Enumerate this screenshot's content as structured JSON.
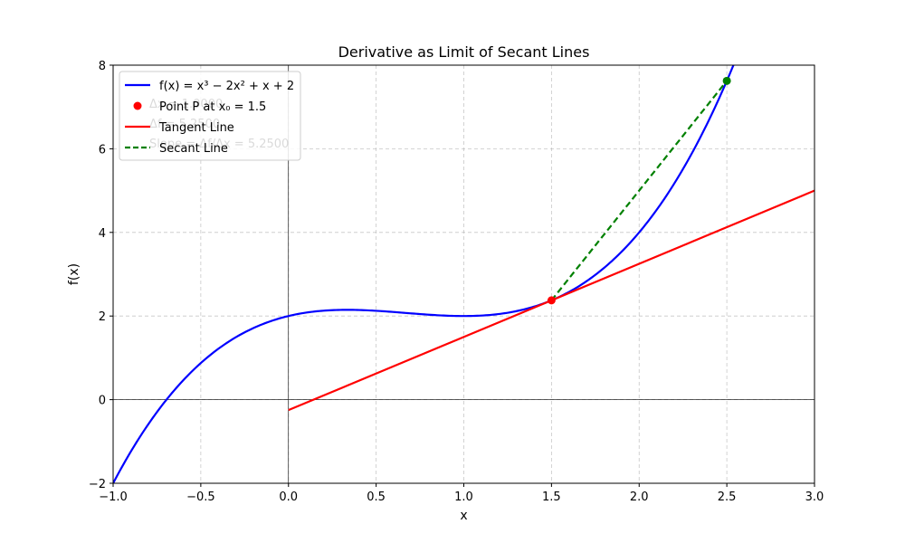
{
  "chart_data": {
    "type": "line",
    "title": "Derivative as Limit of Secant Lines",
    "xlabel": "x",
    "ylabel": "f(x)",
    "xlim": [
      -1.0,
      3.0
    ],
    "ylim": [
      -2,
      8
    ],
    "x_ticks": [
      -1.0,
      -0.5,
      0.0,
      0.5,
      1.0,
      1.5,
      2.0,
      2.5,
      3.0
    ],
    "x_tick_labels": [
      "−1.0",
      "−0.5",
      "0.0",
      "0.5",
      "1.0",
      "1.5",
      "2.0",
      "2.5",
      "3.0"
    ],
    "y_ticks": [
      -2,
      0,
      2,
      4,
      6,
      8
    ],
    "y_tick_labels": [
      "−2",
      "0",
      "2",
      "4",
      "6",
      "8"
    ],
    "grid": true,
    "legend_position": "top-left",
    "function": {
      "name": "f(x) = x³ − 2x² + x + 2",
      "coefficients": [
        1,
        -2,
        1,
        2
      ],
      "x_range": [
        -1.0,
        2.6
      ],
      "color": "#0000ff"
    },
    "point_p": {
      "name": "Point P at x₀ = 1.5",
      "x": 1.5,
      "y": 2.375,
      "color": "#ff0000"
    },
    "tangent": {
      "name": "Tangent Line",
      "x_range": [
        0.0,
        3.0
      ],
      "slope": 1.75,
      "intercept": -0.25,
      "color": "#ff0000"
    },
    "secant": {
      "name": "Secant Line",
      "x": [
        1.5,
        2.5
      ],
      "y": [
        2.375,
        7.625
      ],
      "color": "#008000"
    },
    "annotations": [
      "Δx = 1.0000",
      "Δf = 5.2500",
      "Slope = Δf/Δx = 5.2500"
    ]
  },
  "legend": {
    "items": [
      {
        "label": "f(x) = x³ − 2x² + x + 2",
        "kind": "line",
        "color": "#0000ff"
      },
      {
        "label": "Point P at x₀ = 1.5",
        "kind": "marker",
        "color": "#ff0000"
      },
      {
        "label": "Tangent Line",
        "kind": "line",
        "color": "#ff0000"
      },
      {
        "label": "Secant Line",
        "kind": "dashed",
        "color": "#008000"
      }
    ]
  }
}
